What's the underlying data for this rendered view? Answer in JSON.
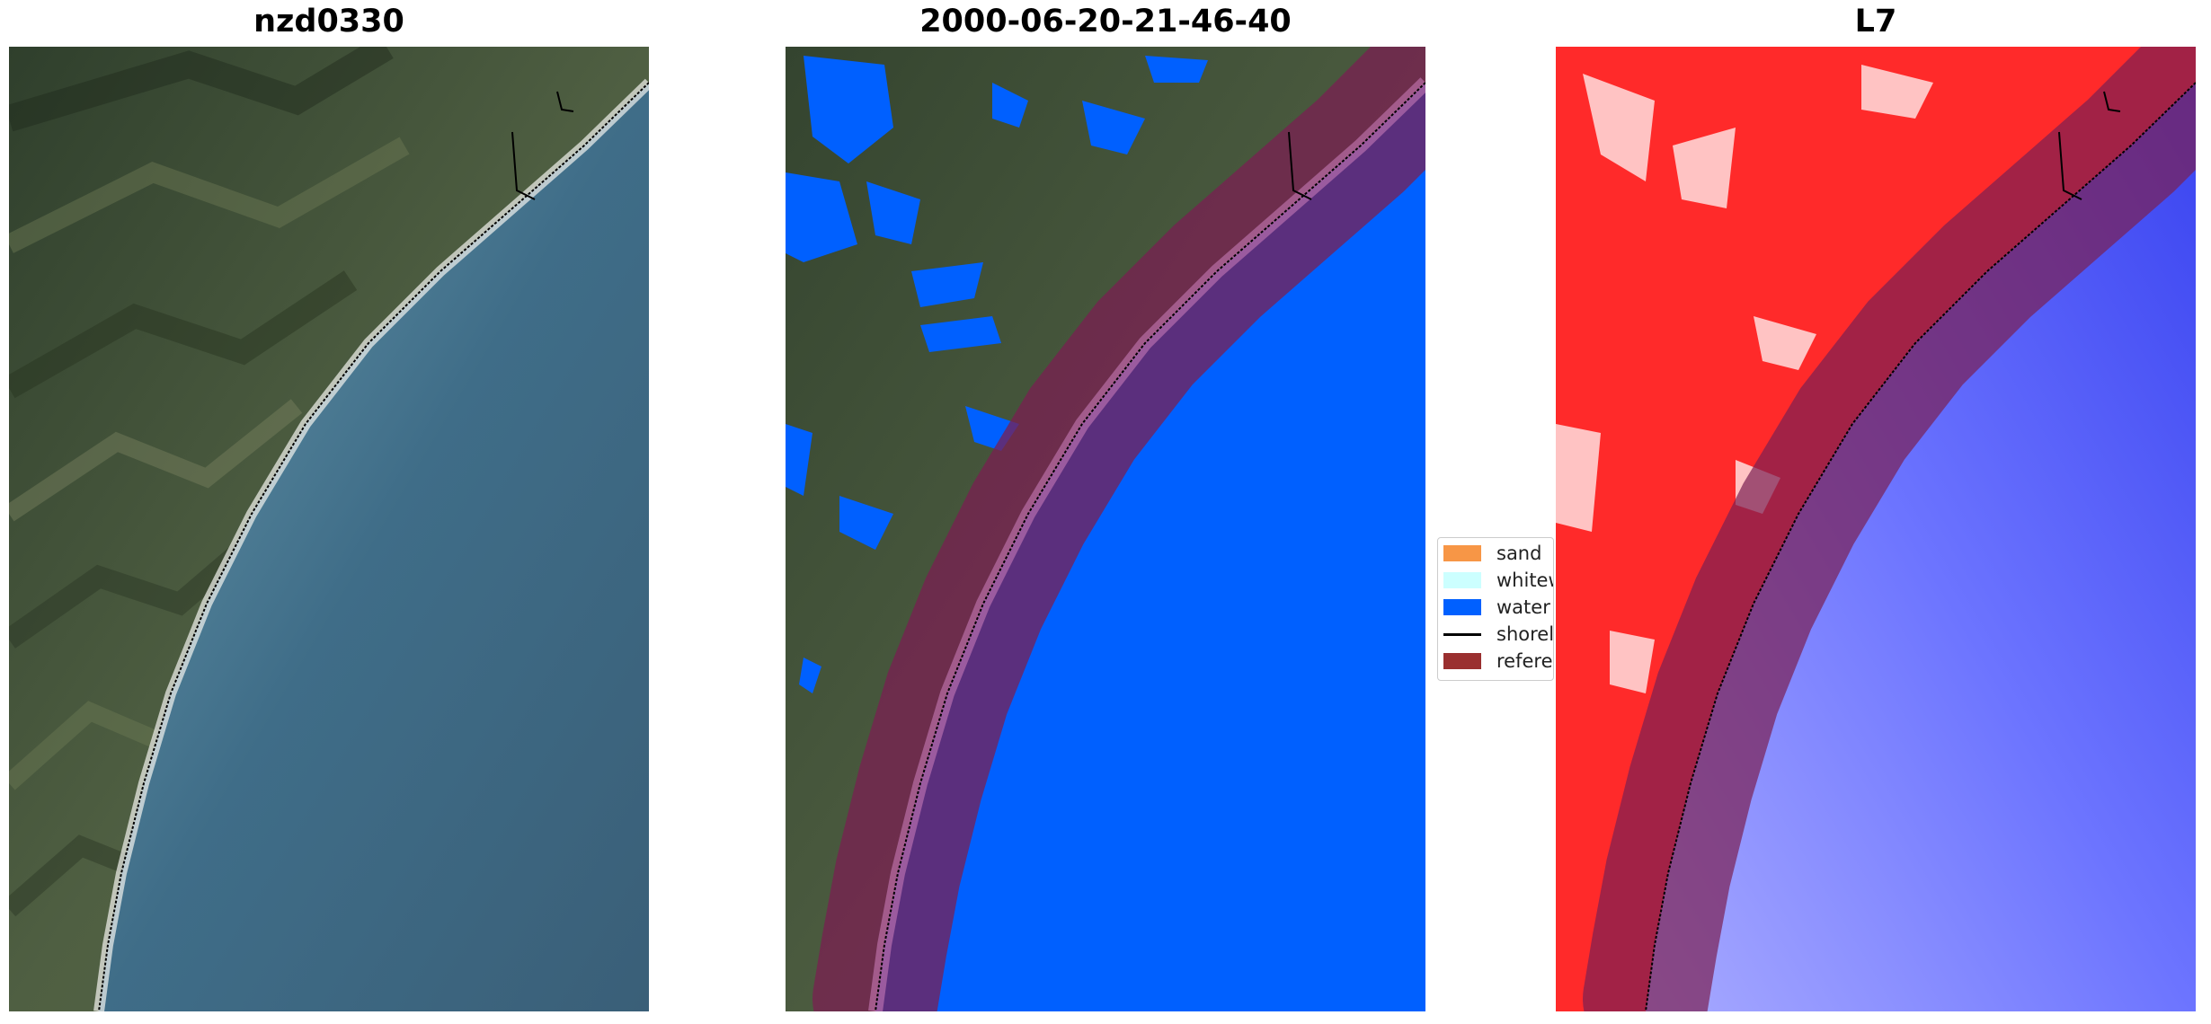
{
  "panels": [
    {
      "title": "nzd0330"
    },
    {
      "title": "2000-06-20-21-46-40"
    },
    {
      "title": "L7"
    }
  ],
  "legend": {
    "items": [
      {
        "label": "sand",
        "color": "#f79646"
      },
      {
        "label": "whitew",
        "color": "#ccffff"
      },
      {
        "label": "water",
        "color": "#0060ff"
      },
      {
        "label": "shorel",
        "color": "#000000"
      },
      {
        "label": "referen",
        "color": "#9a2f2f"
      }
    ]
  },
  "colors": {
    "land": "#4a5a3c",
    "ocean": "#3f6f86",
    "water_mask": "#0060ff",
    "buffer": "#7a1f52",
    "index_land": "#ff2a2a",
    "index_water": "#4048ff"
  }
}
